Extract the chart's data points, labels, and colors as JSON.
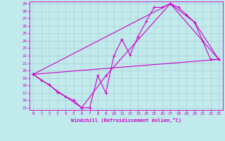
{
  "xlabel": "Windchill (Refroidissement éolien,°C)",
  "xlim": [
    -0.5,
    23.5
  ],
  "ylim": [
    14.7,
    29.3
  ],
  "yticks": [
    15,
    16,
    17,
    18,
    19,
    20,
    21,
    22,
    23,
    24,
    25,
    26,
    27,
    28,
    29
  ],
  "xticks": [
    0,
    1,
    2,
    3,
    4,
    5,
    6,
    7,
    8,
    9,
    10,
    11,
    12,
    13,
    14,
    15,
    16,
    17,
    18,
    19,
    20,
    21,
    22,
    23
  ],
  "bg_color": "#c0eaec",
  "line_color": "#cc00cc",
  "grid_color": "#b0d0d2",
  "line1_x": [
    0,
    1,
    2,
    3,
    4,
    5,
    6,
    7,
    8,
    9,
    10,
    11,
    12,
    13,
    14,
    15,
    16,
    17,
    18,
    19,
    20,
    21,
    22,
    23
  ],
  "line1_y": [
    19.5,
    18.7,
    18.1,
    17.1,
    16.5,
    16.0,
    15.0,
    15.0,
    19.3,
    17.0,
    22.0,
    24.2,
    22.1,
    24.6,
    26.6,
    28.5,
    28.5,
    29.0,
    28.5,
    27.5,
    26.5,
    24.0,
    21.5,
    21.5
  ],
  "line2_x": [
    0,
    23
  ],
  "line2_y": [
    19.5,
    21.5
  ],
  "line3_x": [
    0,
    17,
    23
  ],
  "line3_y": [
    19.5,
    29.0,
    21.5
  ],
  "line4_x": [
    0,
    6,
    9,
    17,
    20,
    23
  ],
  "line4_y": [
    19.5,
    15.0,
    19.3,
    29.0,
    26.5,
    21.5
  ]
}
